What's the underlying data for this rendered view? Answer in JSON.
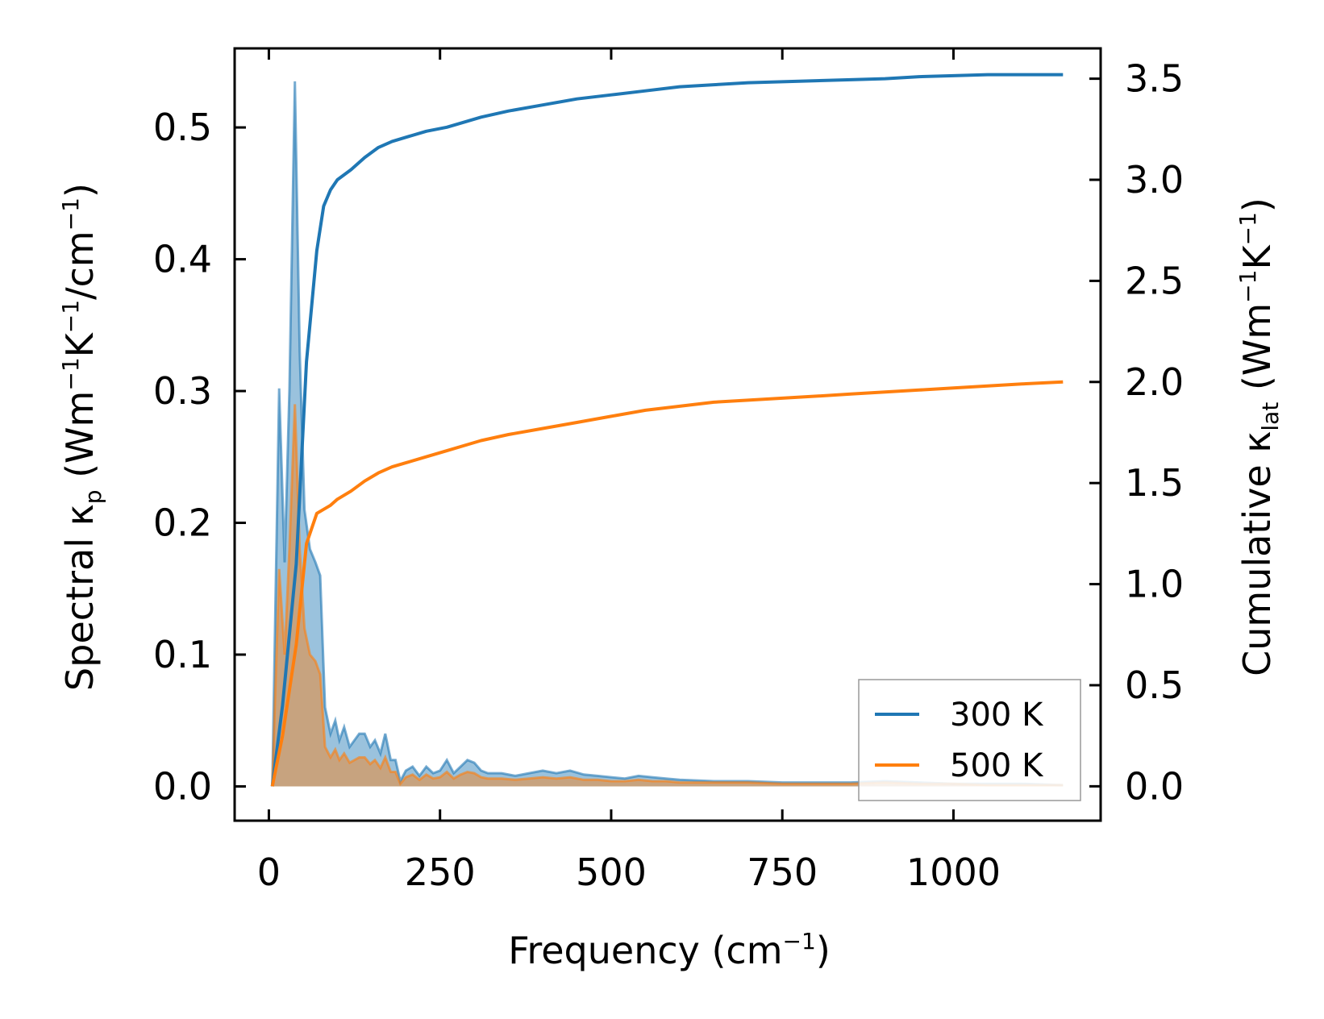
{
  "chart_data": {
    "type": "area",
    "xlabel": {
      "base": "Frequency (cm",
      "sup": "−1",
      "end": ")"
    },
    "ylabel_left": {
      "pre": "Spectral κ",
      "sub": "p",
      "mid": " (Wm",
      "sup1": "−1",
      "k": "K",
      "sup2": "−1",
      "tail": "/cm",
      "sup3": "−1",
      "end": ")"
    },
    "ylabel_right": {
      "pre": "Cumulative κ",
      "sub": "lat",
      "mid": " (Wm",
      "sup1": "−1",
      "k": "K",
      "sup2": "−1",
      "end": ")"
    },
    "xlim": [
      -50,
      1215
    ],
    "ylim_left": [
      -0.026,
      0.56
    ],
    "ylim_right": [
      -0.17,
      3.65
    ],
    "x_ticks": [
      0,
      250,
      500,
      750,
      1000
    ],
    "x_tick_labels": [
      "0",
      "250",
      "500",
      "750",
      "1000"
    ],
    "y_left_ticks": [
      0.0,
      0.1,
      0.2,
      0.3,
      0.4,
      0.5
    ],
    "y_left_tick_labels": [
      "0.0",
      "0.1",
      "0.2",
      "0.3",
      "0.4",
      "0.5"
    ],
    "y_right_ticks": [
      0.0,
      0.5,
      1.0,
      1.5,
      2.0,
      2.5,
      3.0,
      3.5
    ],
    "y_right_tick_labels": [
      "0.0",
      "0.5",
      "1.0",
      "1.5",
      "2.0",
      "2.5",
      "3.0",
      "3.5"
    ],
    "legend": {
      "placement": "lower-right",
      "entries": [
        "300 K",
        "500 K"
      ]
    },
    "colors": {
      "300 K": "#1f77b4",
      "500 K": "#ff7f0e"
    },
    "spectral_series": [
      {
        "name": "300 K",
        "x": [
          5,
          15,
          23,
          30,
          38,
          45,
          52,
          60,
          68,
          75,
          82,
          90,
          97,
          103,
          110,
          118,
          125,
          132,
          140,
          148,
          155,
          163,
          170,
          178,
          185,
          192,
          200,
          210,
          220,
          230,
          240,
          250,
          260,
          270,
          280,
          290,
          300,
          310,
          320,
          340,
          360,
          380,
          400,
          420,
          440,
          460,
          480,
          500,
          520,
          540,
          560,
          580,
          600,
          650,
          700,
          750,
          800,
          850,
          900,
          950,
          1000,
          1050,
          1100,
          1160
        ],
        "y": [
          0.0,
          0.302,
          0.17,
          0.3,
          0.535,
          0.33,
          0.21,
          0.18,
          0.17,
          0.16,
          0.06,
          0.04,
          0.05,
          0.035,
          0.045,
          0.03,
          0.035,
          0.04,
          0.04,
          0.03,
          0.035,
          0.025,
          0.04,
          0.02,
          0.02,
          0.004,
          0.012,
          0.015,
          0.008,
          0.015,
          0.01,
          0.012,
          0.02,
          0.01,
          0.015,
          0.02,
          0.018,
          0.012,
          0.01,
          0.01,
          0.008,
          0.01,
          0.012,
          0.01,
          0.012,
          0.009,
          0.008,
          0.007,
          0.006,
          0.008,
          0.007,
          0.006,
          0.005,
          0.004,
          0.004,
          0.003,
          0.003,
          0.003,
          0.004,
          0.003,
          0.002,
          0.002,
          0.002,
          0.001
        ]
      },
      {
        "name": "500 K",
        "x": [
          5,
          15,
          23,
          30,
          38,
          45,
          52,
          60,
          68,
          75,
          82,
          90,
          97,
          103,
          110,
          118,
          125,
          132,
          140,
          148,
          155,
          163,
          170,
          178,
          185,
          192,
          200,
          210,
          220,
          230,
          240,
          250,
          260,
          270,
          280,
          290,
          300,
          310,
          320,
          340,
          360,
          380,
          400,
          420,
          440,
          460,
          480,
          500,
          520,
          540,
          560,
          580,
          600,
          650,
          700,
          750,
          800,
          850,
          900,
          950,
          1000,
          1050,
          1100,
          1160
        ],
        "y": [
          0.0,
          0.165,
          0.1,
          0.18,
          0.29,
          0.18,
          0.12,
          0.1,
          0.095,
          0.085,
          0.03,
          0.022,
          0.028,
          0.02,
          0.025,
          0.018,
          0.02,
          0.022,
          0.022,
          0.017,
          0.02,
          0.014,
          0.022,
          0.011,
          0.011,
          0.002,
          0.007,
          0.009,
          0.005,
          0.009,
          0.006,
          0.007,
          0.011,
          0.006,
          0.009,
          0.011,
          0.01,
          0.007,
          0.006,
          0.006,
          0.005,
          0.006,
          0.007,
          0.006,
          0.007,
          0.005,
          0.005,
          0.004,
          0.004,
          0.005,
          0.004,
          0.004,
          0.003,
          0.003,
          0.003,
          0.002,
          0.002,
          0.002,
          0.003,
          0.002,
          0.002,
          0.001,
          0.001,
          0.001
        ]
      }
    ],
    "cumulative_series": [
      {
        "name": "300 K",
        "x": [
          5,
          20,
          40,
          55,
          70,
          80,
          90,
          100,
          120,
          140,
          160,
          180,
          200,
          230,
          260,
          290,
          310,
          350,
          400,
          450,
          500,
          550,
          600,
          650,
          700,
          750,
          800,
          850,
          900,
          950,
          1000,
          1050,
          1100,
          1160
        ],
        "y": [
          0.0,
          0.4,
          1.1,
          2.1,
          2.65,
          2.87,
          2.95,
          3.0,
          3.05,
          3.11,
          3.16,
          3.19,
          3.21,
          3.24,
          3.26,
          3.29,
          3.31,
          3.34,
          3.37,
          3.4,
          3.42,
          3.44,
          3.46,
          3.47,
          3.48,
          3.485,
          3.49,
          3.495,
          3.5,
          3.51,
          3.515,
          3.52,
          3.52,
          3.52
        ]
      },
      {
        "name": "500 K",
        "x": [
          5,
          20,
          40,
          55,
          70,
          80,
          90,
          100,
          120,
          140,
          160,
          180,
          200,
          230,
          260,
          290,
          310,
          350,
          400,
          450,
          500,
          550,
          600,
          650,
          700,
          750,
          800,
          850,
          900,
          950,
          1000,
          1050,
          1100,
          1160
        ],
        "y": [
          0.0,
          0.25,
          0.7,
          1.2,
          1.35,
          1.37,
          1.39,
          1.42,
          1.46,
          1.51,
          1.55,
          1.58,
          1.6,
          1.63,
          1.66,
          1.69,
          1.71,
          1.74,
          1.77,
          1.8,
          1.83,
          1.86,
          1.88,
          1.9,
          1.91,
          1.92,
          1.93,
          1.94,
          1.95,
          1.96,
          1.97,
          1.98,
          1.99,
          2.0
        ]
      }
    ]
  }
}
